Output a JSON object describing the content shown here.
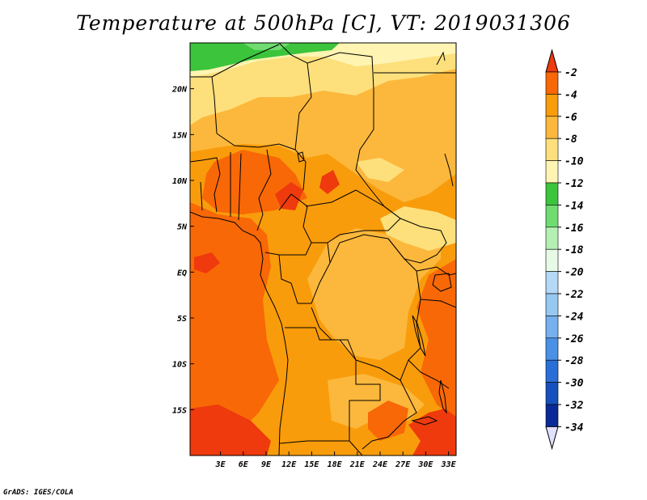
{
  "title": "Temperature at 500hPa [C], VT: 2019031306",
  "credit": "GrADS: IGES/COLA",
  "map": {
    "lon_range": [
      -1,
      34
    ],
    "lat_range": [
      -20,
      25
    ],
    "x_ticks": [
      "3E",
      "6E",
      "9E",
      "12E",
      "15E",
      "18E",
      "21E",
      "24E",
      "27E",
      "30E",
      "33E"
    ],
    "x_tick_values": [
      3,
      6,
      9,
      12,
      15,
      18,
      21,
      24,
      27,
      30,
      33
    ],
    "y_ticks": [
      "20N",
      "15N",
      "10N",
      "5N",
      "EQ",
      "5S",
      "10S",
      "15S"
    ],
    "y_tick_values": [
      20,
      15,
      10,
      5,
      0,
      -5,
      -10,
      -15
    ]
  },
  "colorbar": {
    "labels": [
      "-2",
      "-4",
      "-6",
      "-8",
      "-10",
      "-12",
      "-14",
      "-16",
      "-18",
      "-20",
      "-22",
      "-24",
      "-26",
      "-28",
      "-30",
      "-32",
      "-34"
    ],
    "colors": [
      "#ee3a0c",
      "#f86807",
      "#f99c0b",
      "#fcb83c",
      "#fde07c",
      "#fff4b2",
      "#3cc43c",
      "#6fdc6f",
      "#b4f0b4",
      "#e6fae6",
      "#b4d8f6",
      "#96c8f2",
      "#76b0ee",
      "#4a90e6",
      "#2a6ed8",
      "#1650be",
      "#0a2896",
      "#101068"
    ],
    "top_triangle": "#ee3a0c",
    "bottom_triangle": "#e0e0ff"
  }
}
